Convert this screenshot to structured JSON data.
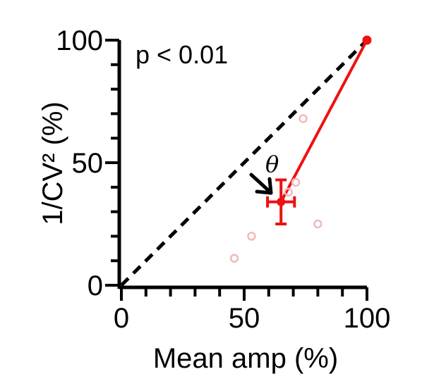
{
  "chart_data": {
    "type": "scatter",
    "xlabel": "Mean amp (%)",
    "ylabel": "1/CV² (%)",
    "xlim": [
      0,
      100
    ],
    "ylim": [
      0,
      100
    ],
    "x_ticks": [
      0,
      50,
      100
    ],
    "y_ticks": [
      0,
      50,
      100
    ],
    "annotation": "p < 0.01",
    "angle_label": "θ",
    "identity_line": {
      "x": [
        0,
        100
      ],
      "y": [
        0,
        100
      ],
      "style": "dashed",
      "color": "#000000"
    },
    "individual_points": {
      "color": "#f2b8b8",
      "x": [
        46,
        53,
        68,
        71,
        74,
        80
      ],
      "y": [
        11,
        20,
        38,
        42,
        68,
        25
      ]
    },
    "mean_point": {
      "x": 65,
      "y": 34,
      "x_err": 5.5,
      "y_err": 9,
      "color": "#ee1111"
    },
    "reference_point": {
      "x": 100,
      "y": 100,
      "color": "#ee1111"
    },
    "trend_line": {
      "x": [
        65,
        100
      ],
      "y": [
        34,
        100
      ],
      "color": "#ee1111"
    },
    "grid": false,
    "legend": "none"
  }
}
